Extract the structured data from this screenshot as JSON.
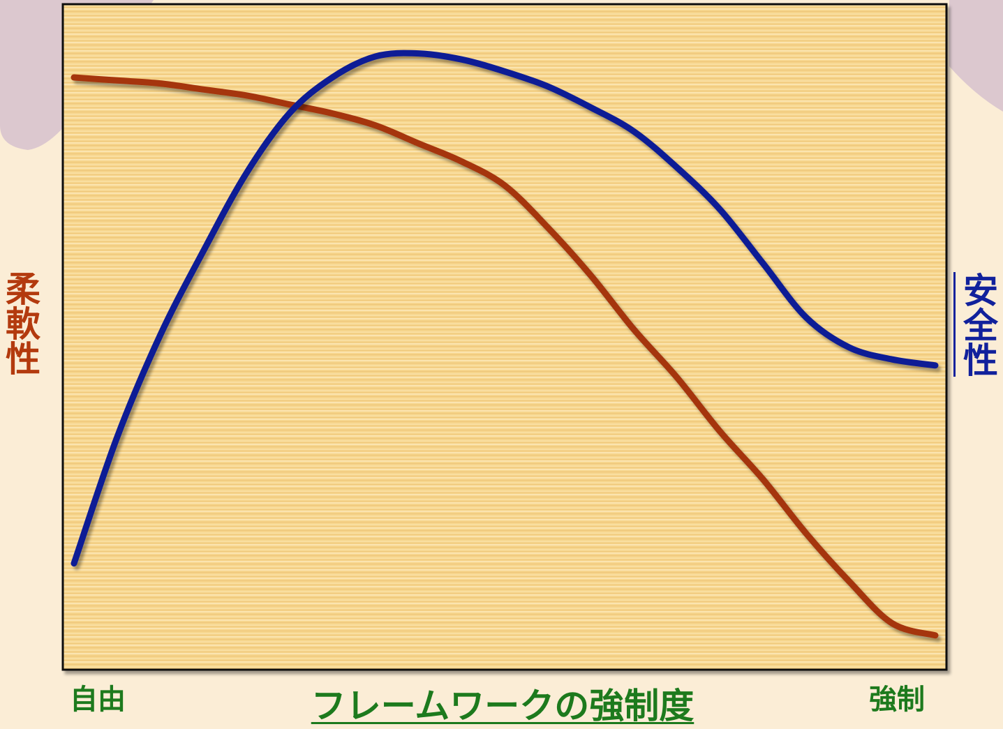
{
  "chart_data": {
    "type": "line",
    "title": "",
    "xlabel": "フレームワークの強制度",
    "x_tick_labels": [
      "自由",
      "強制"
    ],
    "x": [
      0.0,
      0.05,
      0.1,
      0.15,
      0.2,
      0.25,
      0.3,
      0.35,
      0.4,
      0.45,
      0.5,
      0.55,
      0.6,
      0.65,
      0.7,
      0.75,
      0.8,
      0.85,
      0.9,
      0.95,
      1.0
    ],
    "xlim": [
      0,
      1
    ],
    "ylim": [
      0,
      1
    ],
    "grid": false,
    "legend": "none",
    "series": [
      {
        "name": "柔軟性",
        "axis": "left",
        "color": "#a5350c",
        "values": [
          0.95,
          0.945,
          0.94,
          0.93,
          0.92,
          0.905,
          0.89,
          0.87,
          0.84,
          0.81,
          0.77,
          0.7,
          0.62,
          0.53,
          0.45,
          0.36,
          0.28,
          0.19,
          0.11,
          0.04,
          0.02
        ]
      },
      {
        "name": "安全性",
        "axis": "right",
        "color": "#0c1d95",
        "values": [
          0.14,
          0.35,
          0.52,
          0.66,
          0.79,
          0.89,
          0.95,
          0.985,
          0.99,
          0.98,
          0.96,
          0.935,
          0.9,
          0.86,
          0.8,
          0.73,
          0.64,
          0.55,
          0.5,
          0.48,
          0.47
        ]
      }
    ]
  }
}
